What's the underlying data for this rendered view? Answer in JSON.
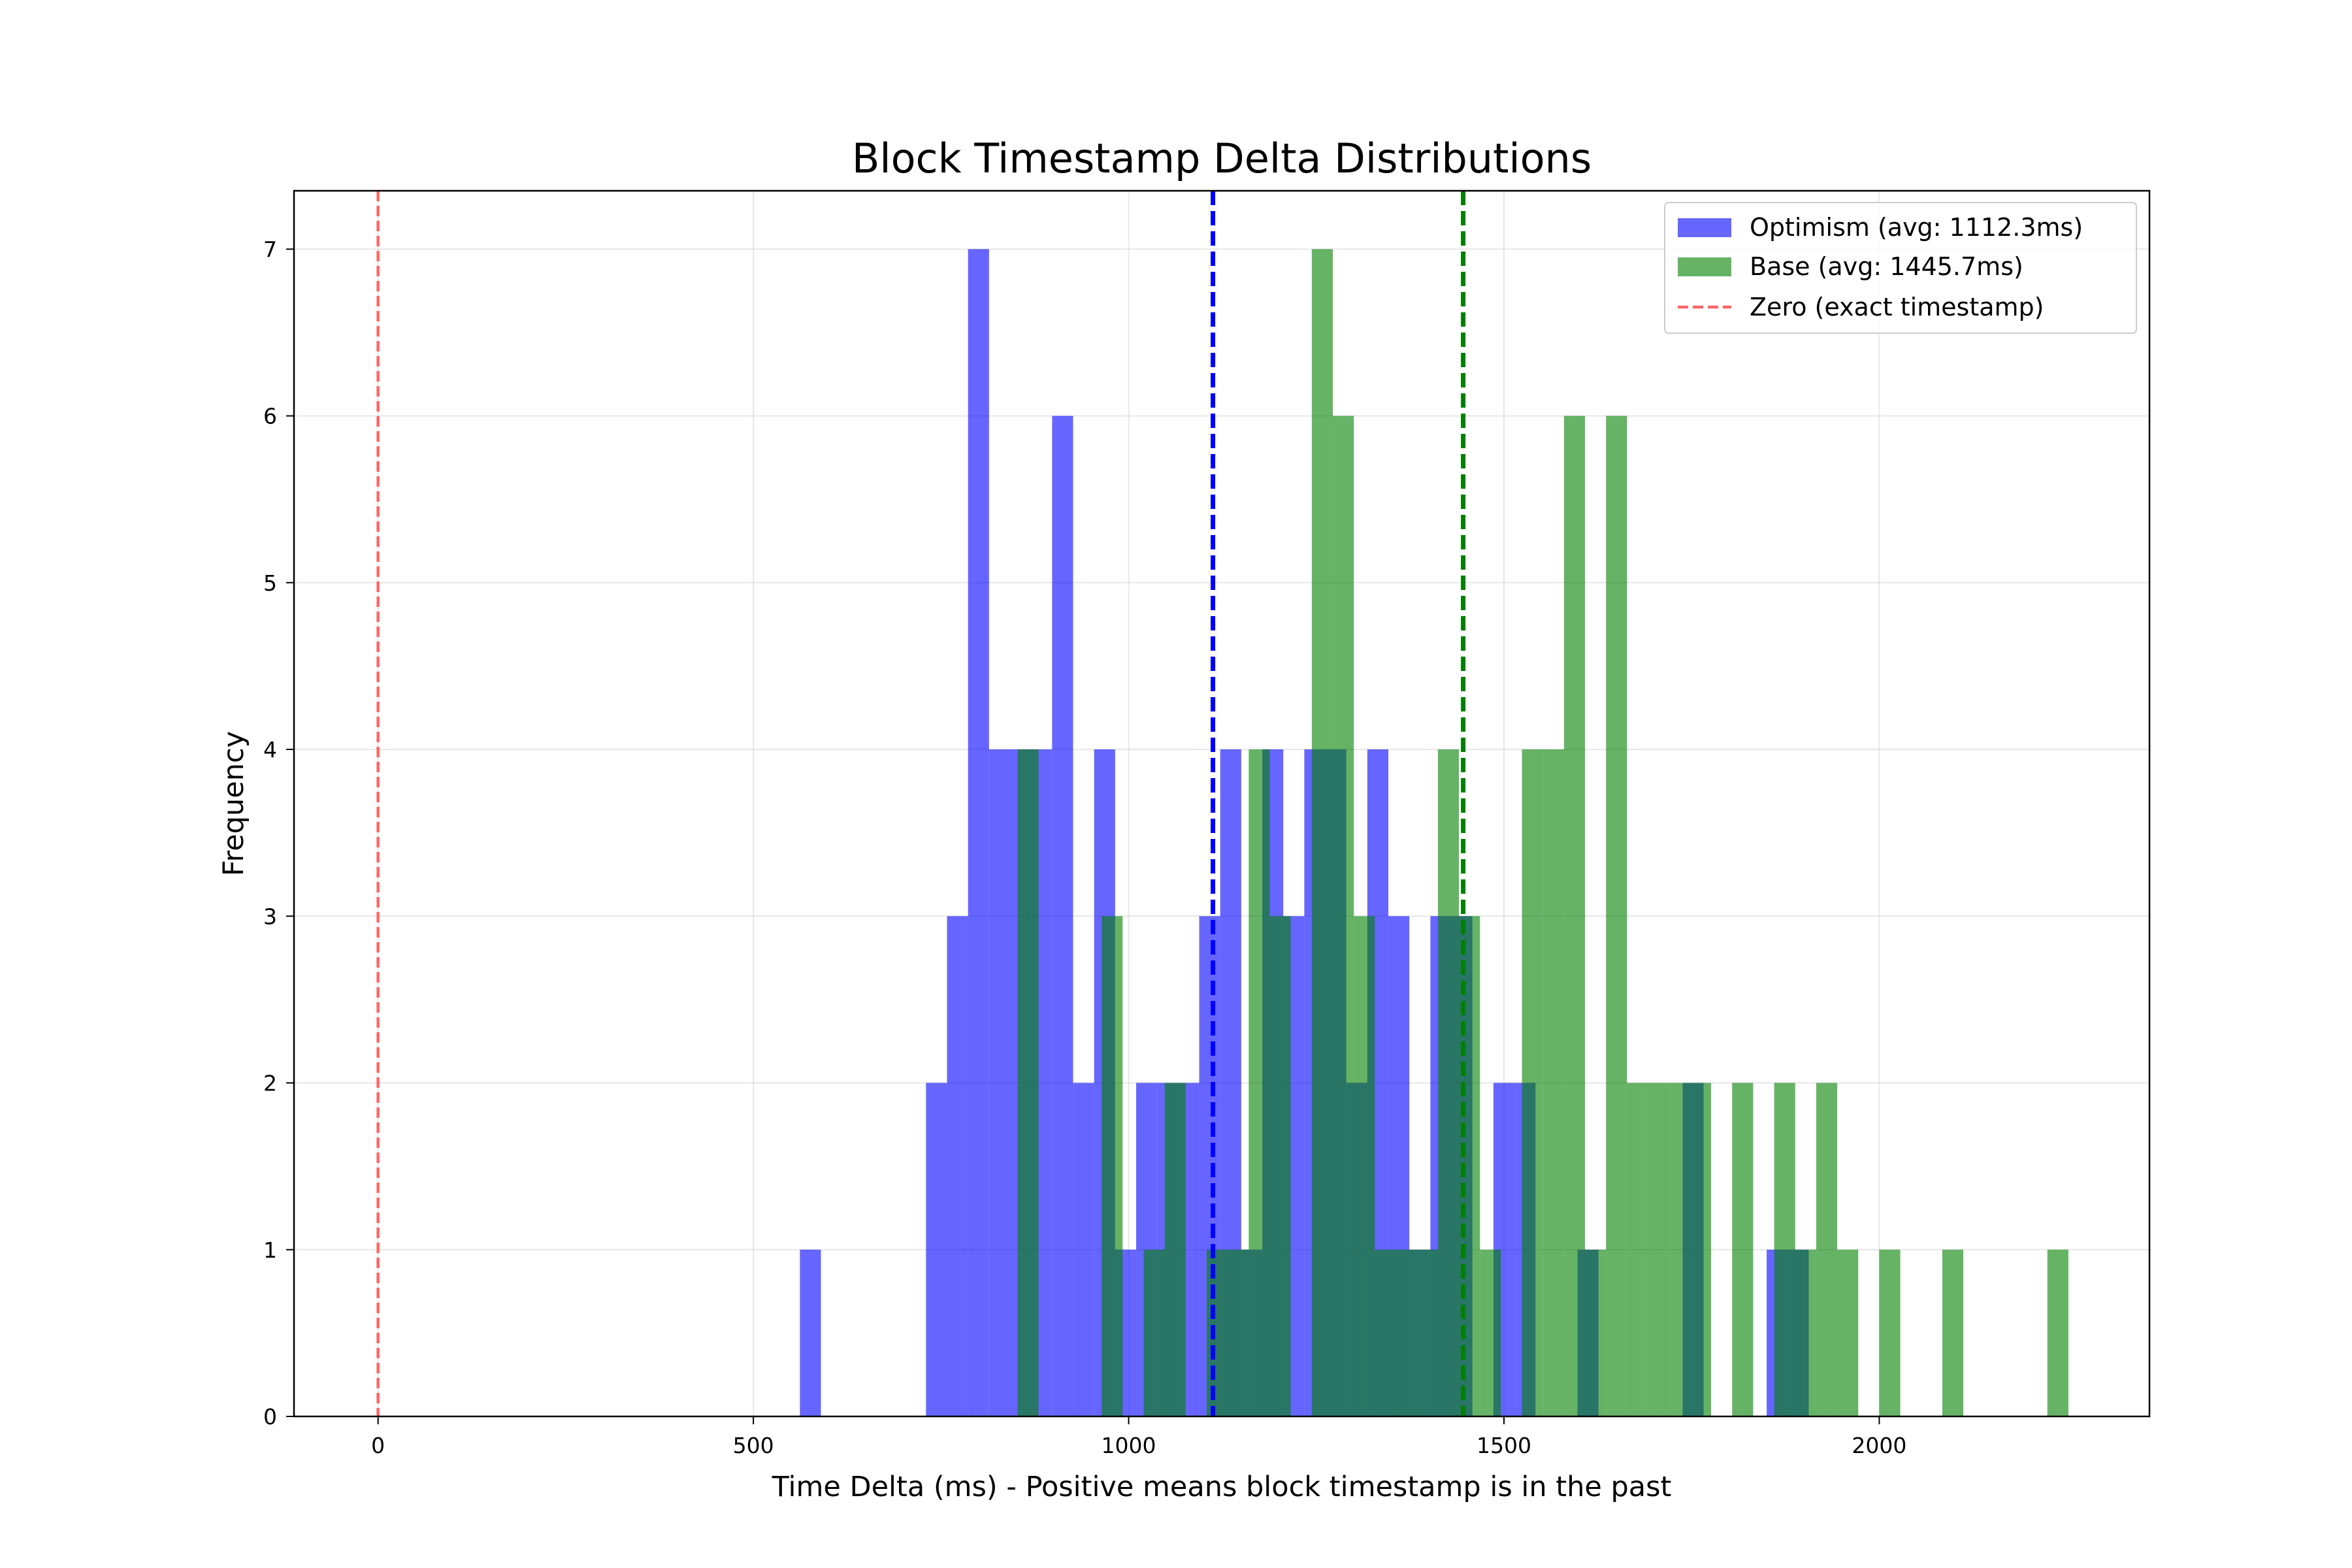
{
  "chart_data": {
    "type": "bar",
    "title": "Block Timestamp Delta Distributions",
    "xlabel": "Time Delta (ms) - Positive means block timestamp is in the past",
    "ylabel": "Frequency",
    "xlim": [
      -112,
      2360
    ],
    "ylim": [
      0,
      7.35
    ],
    "xticks": [
      0,
      500,
      1000,
      1500,
      2000
    ],
    "yticks": [
      0,
      1,
      2,
      3,
      4,
      5,
      6,
      7
    ],
    "grid": true,
    "legend_position": "top-right",
    "series": [
      {
        "name": "Optimism (avg: 1112.3ms)",
        "color": "#0000ff",
        "opacity": 0.6,
        "bins": [
          {
            "x0": 562,
            "x1": 590,
            "count": 1
          },
          {
            "x0": 730,
            "x1": 758,
            "count": 2
          },
          {
            "x0": 758,
            "x1": 786,
            "count": 3
          },
          {
            "x0": 786,
            "x1": 814,
            "count": 7
          },
          {
            "x0": 814,
            "x1": 842,
            "count": 4
          },
          {
            "x0": 842,
            "x1": 870,
            "count": 4
          },
          {
            "x0": 870,
            "x1": 898,
            "count": 4
          },
          {
            "x0": 898,
            "x1": 926,
            "count": 6
          },
          {
            "x0": 926,
            "x1": 954,
            "count": 2
          },
          {
            "x0": 954,
            "x1": 982,
            "count": 4
          },
          {
            "x0": 982,
            "x1": 1010,
            "count": 1
          },
          {
            "x0": 1010,
            "x1": 1038,
            "count": 2
          },
          {
            "x0": 1038,
            "x1": 1066,
            "count": 2
          },
          {
            "x0": 1066,
            "x1": 1094,
            "count": 2
          },
          {
            "x0": 1094,
            "x1": 1122,
            "count": 3
          },
          {
            "x0": 1122,
            "x1": 1150,
            "count": 4
          },
          {
            "x0": 1150,
            "x1": 1178,
            "count": 1
          },
          {
            "x0": 1178,
            "x1": 1206,
            "count": 4
          },
          {
            "x0": 1206,
            "x1": 1234,
            "count": 3
          },
          {
            "x0": 1234,
            "x1": 1262,
            "count": 4
          },
          {
            "x0": 1262,
            "x1": 1290,
            "count": 4
          },
          {
            "x0": 1290,
            "x1": 1318,
            "count": 2
          },
          {
            "x0": 1318,
            "x1": 1346,
            "count": 4
          },
          {
            "x0": 1346,
            "x1": 1374,
            "count": 3
          },
          {
            "x0": 1374,
            "x1": 1402,
            "count": 1
          },
          {
            "x0": 1402,
            "x1": 1430,
            "count": 3
          },
          {
            "x0": 1430,
            "x1": 1458,
            "count": 3
          },
          {
            "x0": 1486,
            "x1": 1514,
            "count": 2
          },
          {
            "x0": 1514,
            "x1": 1542,
            "count": 2
          },
          {
            "x0": 1598,
            "x1": 1626,
            "count": 1
          },
          {
            "x0": 1738,
            "x1": 1766,
            "count": 2
          },
          {
            "x0": 1850,
            "x1": 1878,
            "count": 1
          },
          {
            "x0": 1878,
            "x1": 1906,
            "count": 1
          }
        ]
      },
      {
        "name": "Base (avg: 1445.7ms)",
        "color": "#008000",
        "opacity": 0.6,
        "bins": [
          {
            "x0": 852,
            "x1": 880,
            "count": 4
          },
          {
            "x0": 964,
            "x1": 992,
            "count": 3
          },
          {
            "x0": 1020,
            "x1": 1048,
            "count": 1
          },
          {
            "x0": 1048,
            "x1": 1076,
            "count": 2
          },
          {
            "x0": 1104,
            "x1": 1132,
            "count": 1
          },
          {
            "x0": 1132,
            "x1": 1160,
            "count": 1
          },
          {
            "x0": 1160,
            "x1": 1188,
            "count": 4
          },
          {
            "x0": 1188,
            "x1": 1216,
            "count": 3
          },
          {
            "x0": 1244,
            "x1": 1272,
            "count": 7
          },
          {
            "x0": 1272,
            "x1": 1300,
            "count": 6
          },
          {
            "x0": 1300,
            "x1": 1328,
            "count": 3
          },
          {
            "x0": 1328,
            "x1": 1356,
            "count": 1
          },
          {
            "x0": 1356,
            "x1": 1384,
            "count": 1
          },
          {
            "x0": 1384,
            "x1": 1412,
            "count": 1
          },
          {
            "x0": 1412,
            "x1": 1440,
            "count": 4
          },
          {
            "x0": 1440,
            "x1": 1468,
            "count": 3
          },
          {
            "x0": 1468,
            "x1": 1496,
            "count": 1
          },
          {
            "x0": 1524,
            "x1": 1552,
            "count": 4
          },
          {
            "x0": 1552,
            "x1": 1580,
            "count": 4
          },
          {
            "x0": 1580,
            "x1": 1608,
            "count": 6
          },
          {
            "x0": 1608,
            "x1": 1636,
            "count": 1
          },
          {
            "x0": 1636,
            "x1": 1664,
            "count": 6
          },
          {
            "x0": 1664,
            "x1": 1692,
            "count": 2
          },
          {
            "x0": 1692,
            "x1": 1720,
            "count": 2
          },
          {
            "x0": 1720,
            "x1": 1748,
            "count": 2
          },
          {
            "x0": 1748,
            "x1": 1776,
            "count": 2
          },
          {
            "x0": 1804,
            "x1": 1832,
            "count": 2
          },
          {
            "x0": 1860,
            "x1": 1888,
            "count": 2
          },
          {
            "x0": 1888,
            "x1": 1916,
            "count": 1
          },
          {
            "x0": 1916,
            "x1": 1944,
            "count": 2
          },
          {
            "x0": 1944,
            "x1": 1972,
            "count": 1
          },
          {
            "x0": 2000,
            "x1": 2028,
            "count": 1
          },
          {
            "x0": 2084,
            "x1": 2112,
            "count": 1
          },
          {
            "x0": 2224,
            "x1": 2252,
            "count": 1
          }
        ]
      }
    ],
    "reference_lines": [
      {
        "name": "Zero (exact timestamp)",
        "x": 0,
        "color": "#ff6666",
        "style": "dashed",
        "in_legend": true
      },
      {
        "name": "Optimism mean",
        "x": 1112.3,
        "color": "#0000ff",
        "style": "dashed",
        "in_legend": false
      },
      {
        "name": "Base mean",
        "x": 1445.7,
        "color": "#008000",
        "style": "dashed",
        "in_legend": false
      }
    ]
  }
}
